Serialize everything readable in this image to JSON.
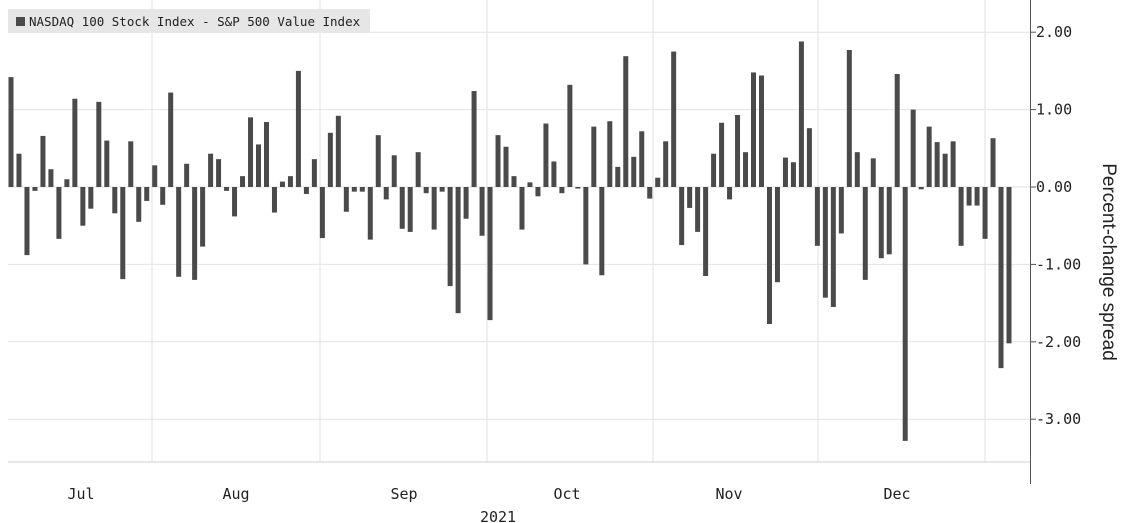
{
  "chart_data": {
    "type": "bar",
    "legend": {
      "label": "NASDAQ 100 Stock Index - S&P 500 Value Index",
      "placement": "top-left"
    },
    "ylabel": "Percent-change spread",
    "xlabel": "2021",
    "ylim": [
      -3.7,
      2.4
    ],
    "yticks": [
      "2.00",
      "1.00",
      "0.00",
      "-1.00",
      "-2.00",
      "-3.00"
    ],
    "ytick_values": [
      2,
      1,
      0,
      -1,
      -2,
      -3
    ],
    "month_labels": [
      "Jul",
      "Aug",
      "Sep",
      "Oct",
      "Nov",
      "Dec"
    ],
    "grid": true,
    "bar_color": "#4a4a4a",
    "series": [
      {
        "values": [
          1.42,
          0.43,
          -0.88,
          -0.05,
          0.66,
          0.23,
          -0.67,
          0.1,
          1.14,
          -0.5,
          -0.28,
          1.1,
          0.6,
          -0.34,
          -1.19,
          0.59,
          -0.45,
          -0.18,
          0.28,
          -0.23,
          1.22,
          -1.16,
          0.3,
          -1.2,
          -0.77,
          0.43,
          0.36,
          -0.05,
          -0.38,
          0.14,
          0.9,
          0.55,
          0.84,
          -0.33,
          0.07,
          0.14,
          1.5,
          -0.09,
          0.36,
          -0.66,
          0.7,
          0.92,
          -0.32,
          -0.06,
          -0.06,
          -0.68,
          0.67,
          -0.16,
          0.41,
          -0.54,
          -0.58,
          0.45,
          -0.08,
          -0.55,
          -0.06,
          -1.28,
          -1.63,
          -0.41,
          1.24,
          -0.63,
          -1.72,
          0.67,
          0.52,
          0.14,
          -0.55,
          0.06,
          -0.12,
          0.82,
          0.33,
          -0.08,
          1.32,
          -0.02,
          -1.0,
          0.78,
          -1.14,
          0.85,
          0.26,
          1.69,
          0.39,
          0.72,
          -0.15,
          0.12,
          0.59,
          1.75,
          -0.75,
          -0.27,
          -0.58,
          -1.15,
          0.43,
          0.83,
          -0.16,
          0.93,
          0.45,
          1.48,
          1.44,
          -1.77,
          -1.23,
          0.38,
          0.32,
          1.88,
          0.76,
          -0.76,
          -1.43,
          -1.55,
          -0.6,
          1.77,
          0.45,
          -1.2,
          0.37,
          -0.92,
          -0.87,
          1.46,
          -3.28,
          1.0,
          -0.03,
          0.78,
          0.58,
          0.43,
          0.59,
          -0.76,
          -0.24,
          -0.24,
          -0.67,
          0.63,
          -2.34,
          -2.02
        ]
      }
    ]
  }
}
